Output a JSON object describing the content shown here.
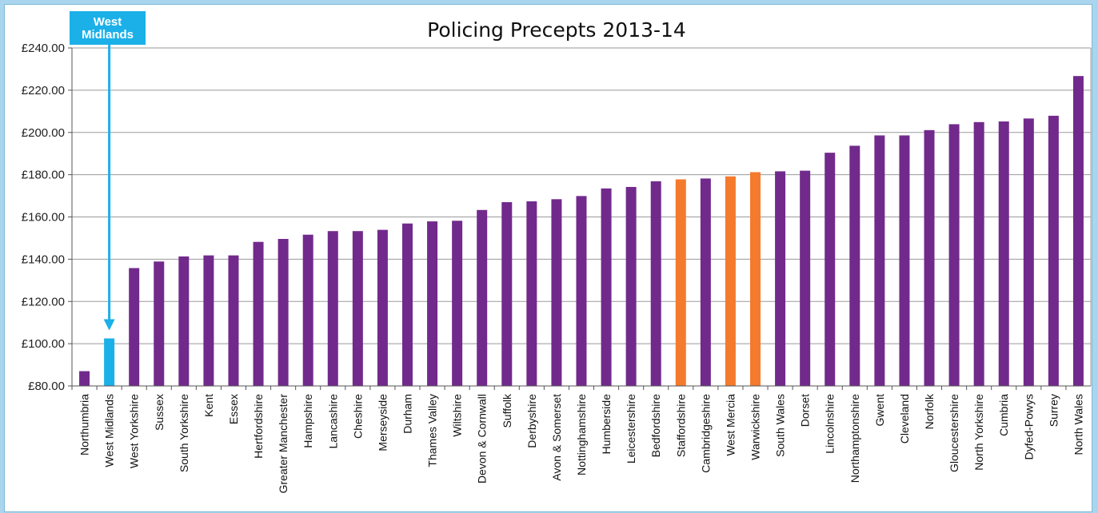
{
  "chart_data": {
    "type": "bar",
    "title": "Policing Precepts 2013-14",
    "xlabel": "",
    "ylabel": "",
    "ylim": [
      80,
      240
    ],
    "yticks": [
      "£80.00",
      "£100.00",
      "£120.00",
      "£140.00",
      "£160.00",
      "£180.00",
      "£200.00",
      "£220.00",
      "£240.00"
    ],
    "grid": true,
    "categories": [
      "Northumbria",
      "West Midlands",
      "West Yorkshire",
      "Sussex",
      "South Yorkshire",
      "Kent",
      "Essex",
      "Hertfordshire",
      "Greater Manchester",
      "Hampshire",
      "Lancashire",
      "Cheshire",
      "Merseyside",
      "Durham",
      "Thames Valley",
      "Wiltshire",
      "Devon & Cornwall",
      "Suffolk",
      "Derbyshire",
      "Avon & Somerset",
      "Nottinghamshire",
      "Humberside",
      "Leicestershire",
      "Bedfordshire",
      "Staffordshire",
      "Cambridgeshire",
      "West Mercia",
      "Warwickshire",
      "South Wales",
      "Dorset",
      "Lincolnshire",
      "Northamptonshire",
      "Gwent",
      "Cleveland",
      "Norfolk",
      "Gloucestershire",
      "North Yorkshire",
      "Cumbria",
      "Dyfed-Powys",
      "Surrey",
      "North Wales"
    ],
    "values": [
      87.0,
      102.5,
      135.8,
      138.9,
      141.3,
      141.8,
      141.8,
      148.2,
      149.6,
      151.6,
      153.3,
      153.3,
      153.9,
      156.9,
      157.9,
      158.2,
      163.3,
      167.0,
      167.4,
      168.4,
      169.9,
      173.5,
      174.2,
      176.9,
      177.8,
      178.2,
      179.2,
      181.2,
      181.6,
      181.9,
      190.4,
      193.7,
      198.6,
      198.6,
      201.1,
      203.9,
      204.9,
      205.2,
      206.6,
      207.9,
      226.7
    ],
    "colors": {
      "default": "#712a8c",
      "highlight_orange": "#f47a2d",
      "highlight_blue": "#1bb0e8"
    },
    "bar_colors": [
      "default",
      "highlight_blue",
      "default",
      "default",
      "default",
      "default",
      "default",
      "default",
      "default",
      "default",
      "default",
      "default",
      "default",
      "default",
      "default",
      "default",
      "default",
      "default",
      "default",
      "default",
      "default",
      "default",
      "default",
      "default",
      "highlight_orange",
      "default",
      "highlight_orange",
      "highlight_orange",
      "default",
      "default",
      "default",
      "default",
      "default",
      "default",
      "default",
      "default",
      "default",
      "default",
      "default",
      "default",
      "default"
    ],
    "annotation": {
      "text_lines": [
        "West",
        "Midlands"
      ],
      "target": "West Midlands",
      "color": "#1bb0e8"
    }
  }
}
